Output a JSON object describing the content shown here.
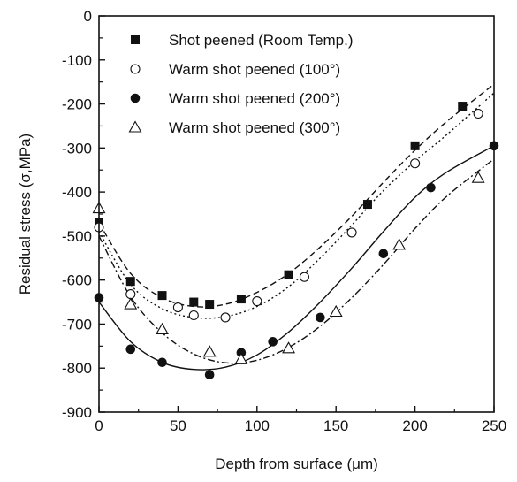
{
  "chart_data": {
    "type": "scatter",
    "xlabel": "Depth from surface (μm)",
    "ylabel": "Residual stress (σ,MPa)",
    "xlim": [
      0,
      250
    ],
    "ylim": [
      -900,
      0
    ],
    "x_ticks": [
      "0",
      "50",
      "100",
      "150",
      "200",
      "250"
    ],
    "y_ticks": [
      "0",
      "-100",
      "-200",
      "-300",
      "-400",
      "-500",
      "-600",
      "-700",
      "-800",
      "-900"
    ],
    "grid": false,
    "legend_position": "top-left",
    "series": [
      {
        "name": "Shot peened (Room Temp.)",
        "marker": "filled-square",
        "line_style": "dashed",
        "points": [
          [
            0,
            -470
          ],
          [
            20,
            -603
          ],
          [
            40,
            -635
          ],
          [
            60,
            -650
          ],
          [
            70,
            -655
          ],
          [
            90,
            -643
          ],
          [
            120,
            -588
          ],
          [
            170,
            -428
          ],
          [
            200,
            -295
          ],
          [
            230,
            -205
          ]
        ],
        "fit": [
          [
            0,
            -470
          ],
          [
            20,
            -585
          ],
          [
            40,
            -640
          ],
          [
            60,
            -660
          ],
          [
            80,
            -655
          ],
          [
            100,
            -628
          ],
          [
            120,
            -585
          ],
          [
            140,
            -525
          ],
          [
            160,
            -455
          ],
          [
            180,
            -378
          ],
          [
            200,
            -305
          ],
          [
            220,
            -240
          ],
          [
            250,
            -155
          ]
        ]
      },
      {
        "name": "Warm shot peened (100°)",
        "marker": "open-circle",
        "line_style": "dotted",
        "points": [
          [
            0,
            -480
          ],
          [
            20,
            -632
          ],
          [
            50,
            -662
          ],
          [
            60,
            -680
          ],
          [
            80,
            -685
          ],
          [
            100,
            -648
          ],
          [
            130,
            -593
          ],
          [
            160,
            -492
          ],
          [
            200,
            -335
          ],
          [
            240,
            -222
          ]
        ],
        "fit": [
          [
            0,
            -490
          ],
          [
            20,
            -610
          ],
          [
            40,
            -665
          ],
          [
            60,
            -685
          ],
          [
            80,
            -683
          ],
          [
            100,
            -660
          ],
          [
            120,
            -615
          ],
          [
            140,
            -550
          ],
          [
            160,
            -475
          ],
          [
            180,
            -397
          ],
          [
            200,
            -330
          ],
          [
            220,
            -270
          ],
          [
            250,
            -175
          ]
        ]
      },
      {
        "name": "Warm shot peened (200°)",
        "marker": "filled-circle",
        "line_style": "solid",
        "points": [
          [
            0,
            -640
          ],
          [
            20,
            -757
          ],
          [
            40,
            -787
          ],
          [
            70,
            -815
          ],
          [
            90,
            -765
          ],
          [
            110,
            -740
          ],
          [
            140,
            -685
          ],
          [
            180,
            -540
          ],
          [
            210,
            -390
          ],
          [
            250,
            -295
          ]
        ],
        "fit": [
          [
            0,
            -650
          ],
          [
            20,
            -740
          ],
          [
            40,
            -787
          ],
          [
            60,
            -803
          ],
          [
            80,
            -798
          ],
          [
            100,
            -770
          ],
          [
            120,
            -718
          ],
          [
            140,
            -650
          ],
          [
            160,
            -573
          ],
          [
            180,
            -490
          ],
          [
            200,
            -412
          ],
          [
            220,
            -355
          ],
          [
            250,
            -295
          ]
        ]
      },
      {
        "name": "Warm shot peened (300°)",
        "marker": "open-triangle",
        "line_style": "dash-dot",
        "points": [
          [
            0,
            -437
          ],
          [
            20,
            -655
          ],
          [
            40,
            -712
          ],
          [
            70,
            -763
          ],
          [
            90,
            -780
          ],
          [
            120,
            -755
          ],
          [
            150,
            -672
          ],
          [
            190,
            -520
          ],
          [
            240,
            -368
          ]
        ],
        "fit": [
          [
            0,
            -500
          ],
          [
            20,
            -638
          ],
          [
            40,
            -720
          ],
          [
            60,
            -768
          ],
          [
            80,
            -788
          ],
          [
            100,
            -782
          ],
          [
            120,
            -753
          ],
          [
            140,
            -705
          ],
          [
            160,
            -640
          ],
          [
            180,
            -565
          ],
          [
            200,
            -483
          ],
          [
            220,
            -410
          ],
          [
            250,
            -325
          ]
        ]
      }
    ]
  }
}
